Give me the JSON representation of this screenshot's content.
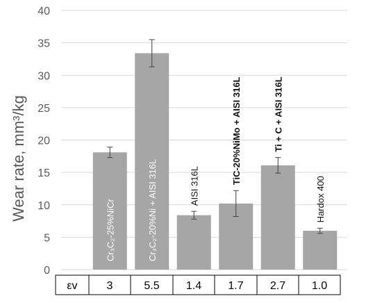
{
  "chart_data": {
    "type": "bar",
    "ylabel": "Wear rate, mm³/kg",
    "ylim": [
      0,
      40
    ],
    "yticks": [
      0,
      5,
      10,
      15,
      20,
      25,
      30,
      35,
      40
    ],
    "grid": true,
    "categories": [
      "Cr₃C₂-25%NiCr",
      "Cr₃C₂-20%Ni + AISI 316L",
      "AISI 316L",
      "TiC-20%NiMo + AISI 316L",
      "Ti + C + AISI 316L",
      "Hardox 400"
    ],
    "values": [
      18.1,
      33.4,
      8.4,
      10.2,
      16.1,
      6.0
    ],
    "errors": [
      0.8,
      2.1,
      0.6,
      2.0,
      1.2,
      0.4
    ],
    "bar_color": "#a6a6a6",
    "table": {
      "label": "εv",
      "values": [
        "3",
        "5.5",
        "1.4",
        "1.7",
        "2.7",
        "1.0"
      ]
    }
  }
}
